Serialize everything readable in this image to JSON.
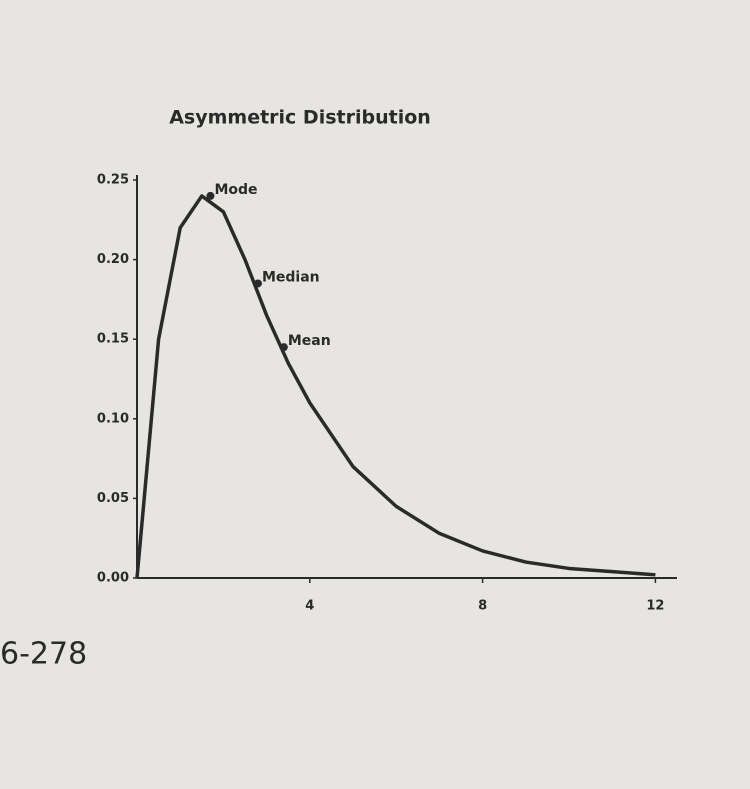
{
  "chart_data": {
    "type": "line",
    "title": "Asymmetric Distribution",
    "x": [
      0,
      0.5,
      1,
      1.5,
      2,
      2.5,
      3,
      3.5,
      4,
      5,
      6,
      7,
      8,
      9,
      10,
      11,
      12
    ],
    "series": [
      {
        "color": "#2a2a2a",
        "values": [
          0,
          0.15,
          0.22,
          0.24,
          0.23,
          0.2,
          0.165,
          0.135,
          0.11,
          0.07,
          0.045,
          0.028,
          0.017,
          0.01,
          0.006,
          0.004,
          0.002
        ]
      }
    ],
    "annotations": [
      {
        "text": "Mode",
        "x": 1.7,
        "y": 0.24
      },
      {
        "text": "Median",
        "x": 2.8,
        "y": 0.185
      },
      {
        "text": "Mean",
        "x": 3.4,
        "y": 0.145
      }
    ],
    "xlim": [
      0,
      12.5
    ],
    "ylim": [
      0,
      0.25
    ],
    "xticks": [
      4,
      8,
      12
    ],
    "yticks": [
      {
        "value": 0,
        "label": "0.00"
      },
      0.05,
      {
        "value": 0.1,
        "label": "0.10"
      },
      0.15,
      {
        "value": 0.2,
        "label": "0.20"
      },
      0.25
    ]
  },
  "page": {
    "page_ref": "6-278"
  }
}
